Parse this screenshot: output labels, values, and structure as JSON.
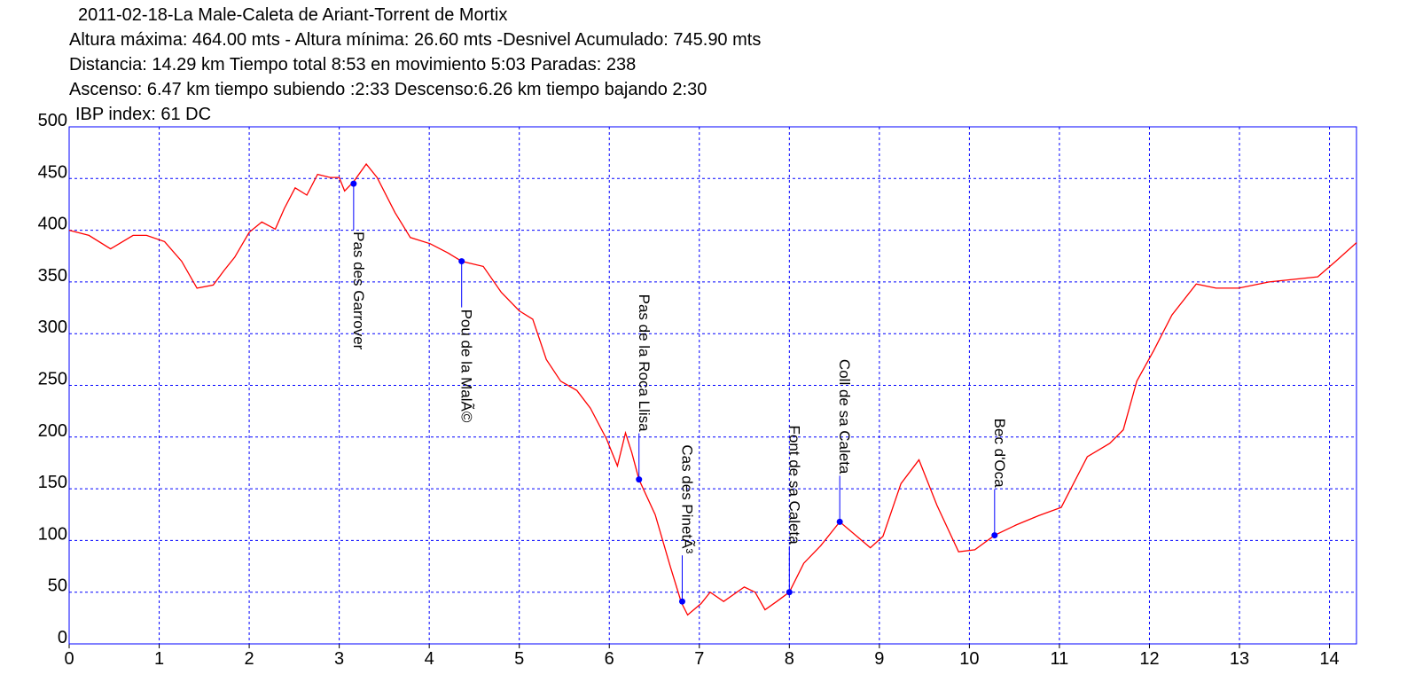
{
  "chart_data": {
    "type": "line",
    "title": "2011-02-18-La Male-Caleta de Ariant-Torrent de Mortix",
    "subtitles": [
      "Altura máxima: 464.00 mts - Altura mínima: 26.60 mts -Desnivel Acumulado: 745.90 mts",
      "Distancia: 14.29 km  Tiempo total 8:53  en movimiento 5:03 Paradas: 238",
      "Ascenso: 6.47 km  tiempo subiendo :2:33  Descenso:6.26 km tiempo bajando 2:30",
      "IBP index: 61 DC"
    ],
    "color": "#ff0000",
    "marker_color": "#0000ff",
    "grid": true,
    "xlim": [
      0,
      14.3
    ],
    "xticks": [
      0,
      1,
      2,
      3,
      4,
      5,
      6,
      7,
      8,
      9,
      10,
      11,
      12,
      13,
      14
    ],
    "ylim": [
      0,
      500
    ],
    "yticks": [
      0,
      50,
      100,
      150,
      200,
      250,
      300,
      350,
      400,
      450,
      500
    ],
    "x": [
      0,
      0.22,
      0.46,
      0.71,
      0.86,
      1.06,
      1.25,
      1.42,
      1.6,
      1.72,
      1.84,
      2.0,
      2.14,
      2.29,
      2.39,
      2.51,
      2.64,
      2.76,
      2.9,
      3.0,
      3.06,
      3.16,
      3.3,
      3.42,
      3.62,
      3.79,
      4.01,
      4.21,
      4.36,
      4.6,
      4.8,
      5.0,
      5.15,
      5.3,
      5.46,
      5.64,
      5.79,
      5.97,
      6.09,
      6.18,
      6.25,
      6.33,
      6.51,
      6.68,
      6.8,
      6.87,
      7.02,
      7.12,
      7.27,
      7.5,
      7.62,
      7.73,
      7.86,
      8.0,
      8.16,
      8.35,
      8.56,
      8.75,
      8.9,
      9.04,
      9.24,
      9.44,
      9.64,
      9.88,
      10.06,
      10.28,
      10.52,
      10.77,
      11.02,
      11.31,
      11.56,
      11.71,
      11.86,
      12.05,
      12.25,
      12.52,
      12.74,
      12.99,
      13.33,
      13.87,
      14.07,
      14.3
    ],
    "values": [
      400,
      395,
      382,
      395,
      395,
      389,
      370,
      344,
      347,
      361,
      374,
      398,
      408,
      401,
      421,
      441,
      434,
      454,
      451,
      451,
      438,
      447,
      464,
      451,
      417,
      393,
      387,
      378,
      370,
      365,
      340,
      322,
      314,
      275,
      254,
      245,
      228,
      198,
      172,
      204,
      185,
      159,
      125,
      74,
      40,
      28,
      39,
      50,
      41,
      55,
      50,
      33,
      41,
      50,
      78,
      95,
      118,
      104,
      93,
      104,
      155,
      178,
      134,
      89,
      91,
      105,
      115,
      124,
      132,
      181,
      194,
      207,
      254,
      284,
      318,
      348,
      344,
      344,
      350,
      355,
      370,
      388
    ],
    "annotations": [
      {
        "label": "Pas  des Garrover",
        "x": 3.16,
        "y": 445
      },
      {
        "label": "Pou de la MalÃ©",
        "x": 4.36,
        "y": 370
      },
      {
        "label": "Pas de la Roca Llisa",
        "x": 6.33,
        "y": 159
      },
      {
        "label": "Cas des PinetÃ³",
        "x": 6.81,
        "y": 41
      },
      {
        "label": "Font de sa Caleta",
        "x": 8.0,
        "y": 50
      },
      {
        "label": "Coll de sa Caleta",
        "x": 8.56,
        "y": 118
      },
      {
        "label": "Bec d'Oca",
        "x": 10.28,
        "y": 105
      }
    ]
  }
}
